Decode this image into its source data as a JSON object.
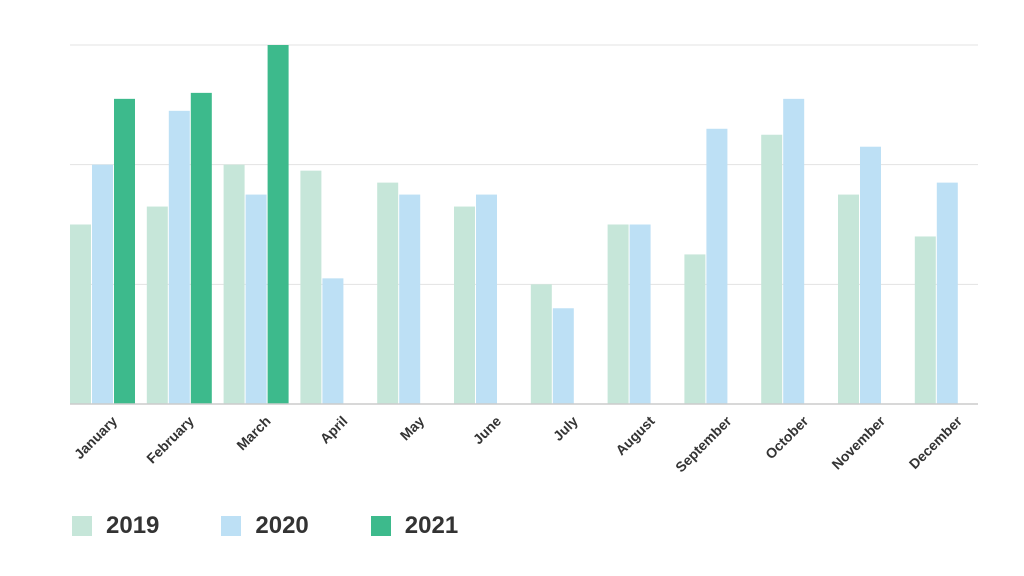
{
  "chart_data": {
    "type": "bar",
    "categories": [
      "January",
      "February",
      "March",
      "April",
      "May",
      "June",
      "July",
      "August",
      "September",
      "October",
      "November",
      "December"
    ],
    "series": [
      {
        "name": "2019",
        "color": "#c6e6d9",
        "values": [
          3.0,
          3.3,
          4.0,
          3.9,
          3.7,
          3.3,
          2.0,
          3.0,
          2.5,
          4.5,
          3.5,
          2.8
        ]
      },
      {
        "name": "2020",
        "color": "#bde0f5",
        "values": [
          4.0,
          4.9,
          3.5,
          2.1,
          3.5,
          3.5,
          1.6,
          3.0,
          4.6,
          5.1,
          4.3,
          3.7
        ]
      },
      {
        "name": "2021",
        "color": "#3dba8c",
        "values": [
          5.1,
          5.2,
          6.0,
          null,
          null,
          null,
          null,
          null,
          null,
          null,
          null,
          null
        ]
      }
    ],
    "ylim": [
      0,
      6
    ],
    "ygrid": [
      0,
      2,
      4,
      6
    ],
    "grid": true,
    "legend_position": "bottom-left",
    "title": "",
    "xlabel": "",
    "ylabel": ""
  }
}
